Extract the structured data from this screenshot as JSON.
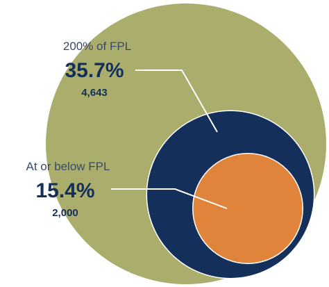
{
  "chart_data": {
    "type": "circles",
    "series": [
      {
        "name": "200% of FPL",
        "value": 35.7,
        "value_label": "35.7%",
        "count": 4643,
        "count_label": "4,643",
        "color": "#14305a"
      },
      {
        "name": "At or below FPL",
        "value": 15.4,
        "value_label": "15.4%",
        "count": 2000,
        "count_label": "2,000",
        "color": "#e0843c"
      }
    ]
  }
}
